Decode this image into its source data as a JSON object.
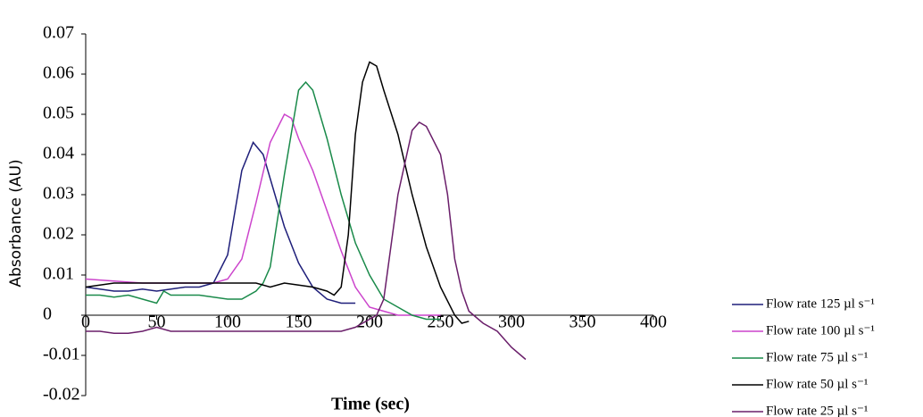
{
  "chart_data": {
    "type": "line",
    "x_label": "Time (sec)",
    "y_label": "Absorbance (AU)",
    "xlim": [
      0,
      400
    ],
    "xticks": [
      0,
      50,
      100,
      150,
      200,
      250,
      300,
      350,
      400
    ],
    "ylim": [
      -0.02,
      0.07
    ],
    "yticks": [
      -0.02,
      -0.01,
      0,
      0.01,
      0.02,
      0.03,
      0.04,
      0.05,
      0.06,
      0.07
    ],
    "grid": false,
    "legend": "right",
    "series": [
      {
        "name": "Flow rate 125 µl s⁻¹",
        "color": "#1f1f7a",
        "x": [
          0,
          10,
          20,
          30,
          40,
          50,
          60,
          70,
          80,
          90,
          100,
          110,
          118,
          125,
          130,
          140,
          150,
          160,
          170,
          180,
          190
        ],
        "values": [
          0.007,
          0.0065,
          0.006,
          0.006,
          0.0065,
          0.006,
          0.0065,
          0.007,
          0.007,
          0.008,
          0.015,
          0.036,
          0.043,
          0.04,
          0.034,
          0.022,
          0.013,
          0.007,
          0.004,
          0.003,
          0.003
        ]
      },
      {
        "name": "Flow rate 100 µl s⁻¹",
        "color": "#cc44cc",
        "x": [
          0,
          20,
          40,
          60,
          80,
          90,
          100,
          110,
          120,
          130,
          140,
          145,
          150,
          160,
          170,
          180,
          190,
          200,
          210,
          220,
          230,
          240,
          250
        ],
        "values": [
          0.009,
          0.0085,
          0.008,
          0.008,
          0.008,
          0.008,
          0.009,
          0.014,
          0.028,
          0.043,
          0.05,
          0.049,
          0.044,
          0.036,
          0.026,
          0.016,
          0.007,
          0.002,
          0.001,
          0,
          0,
          0,
          0
        ]
      },
      {
        "name": "Flow rate 75 µl s⁻¹",
        "color": "#1a8a4a",
        "x": [
          0,
          10,
          20,
          30,
          40,
          50,
          55,
          60,
          80,
          100,
          110,
          120,
          125,
          130,
          140,
          150,
          155,
          160,
          170,
          180,
          190,
          200,
          210,
          220,
          230,
          240,
          250
        ],
        "values": [
          0.005,
          0.005,
          0.0045,
          0.005,
          0.004,
          0.003,
          0.006,
          0.005,
          0.005,
          0.004,
          0.004,
          0.006,
          0.008,
          0.012,
          0.035,
          0.056,
          0.058,
          0.056,
          0.044,
          0.03,
          0.018,
          0.01,
          0.004,
          0.002,
          0,
          -0.001,
          -0.001
        ]
      },
      {
        "name": "Flow rate 50 µl s⁻¹",
        "color": "#000000",
        "x": [
          0,
          20,
          40,
          60,
          80,
          100,
          120,
          130,
          140,
          150,
          160,
          170,
          175,
          180,
          185,
          190,
          195,
          200,
          205,
          210,
          220,
          230,
          240,
          250,
          260,
          265,
          270
        ],
        "values": [
          0.007,
          0.008,
          0.008,
          0.008,
          0.008,
          0.008,
          0.008,
          0.007,
          0.008,
          0.0075,
          0.007,
          0.006,
          0.005,
          0.007,
          0.02,
          0.045,
          0.058,
          0.063,
          0.062,
          0.056,
          0.045,
          0.03,
          0.017,
          0.007,
          0,
          -0.002,
          -0.0015
        ]
      },
      {
        "name": "Flow rate 25 µl s⁻¹",
        "color": "#6a1e6a",
        "x": [
          0,
          10,
          20,
          30,
          40,
          50,
          60,
          80,
          100,
          120,
          140,
          160,
          180,
          190,
          200,
          205,
          210,
          220,
          230,
          235,
          240,
          250,
          255,
          260,
          265,
          270,
          280,
          290,
          300,
          310
        ],
        "values": [
          -0.004,
          -0.004,
          -0.0045,
          -0.0045,
          -0.004,
          -0.003,
          -0.004,
          -0.004,
          -0.004,
          -0.004,
          -0.004,
          -0.004,
          -0.004,
          -0.003,
          -0.001,
          0,
          0.004,
          0.03,
          0.046,
          0.048,
          0.047,
          0.04,
          0.03,
          0.014,
          0.006,
          0.001,
          -0.002,
          -0.004,
          -0.008,
          -0.011
        ]
      }
    ]
  }
}
